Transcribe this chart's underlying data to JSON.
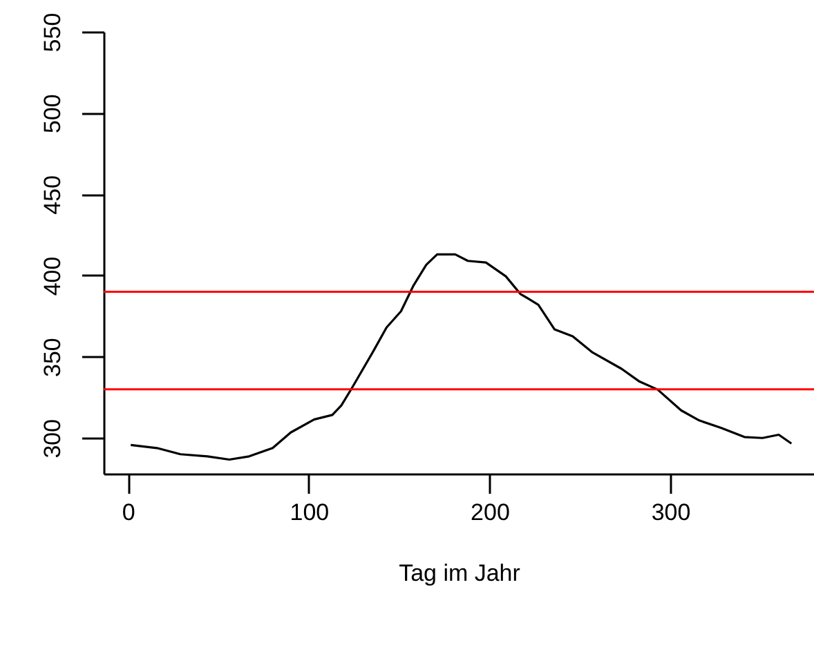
{
  "chart_data": {
    "type": "line",
    "xlabel": "Tag im Jahr",
    "x": [
      1.5,
      16,
      29,
      44,
      56,
      67,
      80,
      90,
      103,
      113,
      118,
      124,
      136,
      143,
      151,
      158,
      165,
      171,
      181,
      188,
      198,
      209,
      217,
      227,
      236,
      246,
      257,
      273,
      283,
      293,
      306,
      316,
      328,
      341,
      351,
      360,
      367
    ],
    "series": [
      {
        "color": "#000000",
        "values": [
          295.7,
          293.8,
          290,
          288.7,
          286.7,
          288.7,
          293.8,
          303.4,
          311.4,
          314.2,
          320,
          331,
          354,
          368,
          378,
          394,
          406.6,
          413,
          413,
          409,
          408,
          399.5,
          388.7,
          382,
          366.8,
          362.6,
          352.6,
          342.6,
          334.7,
          329.8,
          317,
          310.8,
          306.3,
          300.6,
          300,
          302,
          296.6
        ]
      }
    ],
    "xlim": [
      -13.5,
      379.5
    ],
    "ylim": [
      278,
      550
    ],
    "xticks": [
      0,
      100,
      200,
      300
    ],
    "yticks": [
      300,
      350,
      400,
      450,
      500,
      550
    ],
    "ref_lines": [
      {
        "axis": "y",
        "value": 390,
        "color": "#ff0000"
      },
      {
        "axis": "y",
        "value": 330,
        "color": "#ff0000"
      }
    ],
    "grid": false,
    "marker": "none",
    "line_style": "solid"
  }
}
